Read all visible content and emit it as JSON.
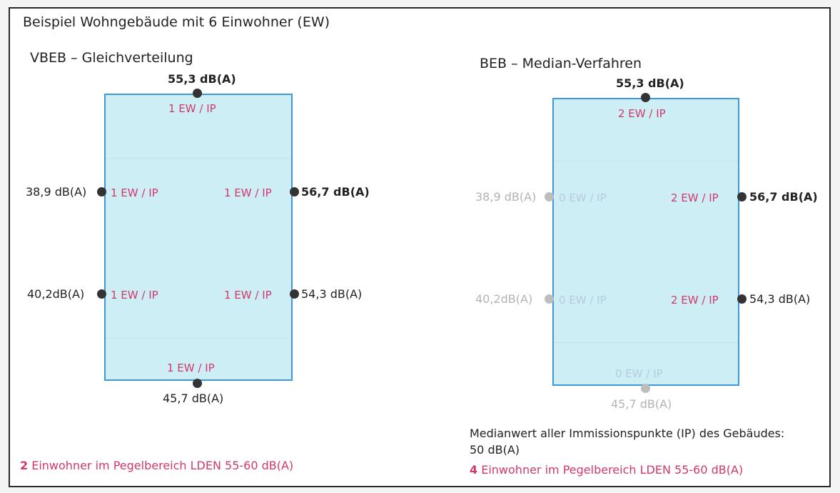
{
  "title": "Beispiel Wohngebäude mit 6 Einwohner (EW)",
  "left": {
    "heading": "VBEB – Gleichverteilung",
    "points": {
      "top": {
        "level": "55,3 dB(A)",
        "ew": "1 EW / IP"
      },
      "left_upper": {
        "level": "38,9 dB(A)",
        "ew": "1 EW / IP"
      },
      "right_upper": {
        "level": "56,7 dB(A)",
        "ew": "1 EW / IP"
      },
      "left_lower": {
        "level": "40,2dB(A)",
        "ew": "1 EW / IP"
      },
      "right_lower": {
        "level": "54,3 dB(A)",
        "ew": "1 EW / IP"
      },
      "bottom": {
        "level": "45,7 dB(A)",
        "ew": "1 EW / IP"
      }
    },
    "summary_count": "2",
    "summary_text": "Einwohner im Pegelbereich LDEN 55-60 dB(A)"
  },
  "right": {
    "heading": "BEB – Median-Verfahren",
    "points": {
      "top": {
        "level": "55,3 dB(A)",
        "ew": "2 EW / IP"
      },
      "left_upper": {
        "level": "38,9 dB(A)",
        "ew": "0 EW / IP"
      },
      "right_upper": {
        "level": "56,7 dB(A)",
        "ew": "2 EW / IP"
      },
      "left_lower": {
        "level": "40,2dB(A)",
        "ew": "0 EW / IP"
      },
      "right_lower": {
        "level": "54,3 dB(A)",
        "ew": "2 EW / IP"
      },
      "bottom": {
        "level": "45,7 dB(A)",
        "ew": "0 EW / IP"
      }
    },
    "median_line1": "Medianwert aller Immissionspunkte (IP) des Gebäudes:",
    "median_line2": "50 dB(A)",
    "summary_count": "4",
    "summary_text": "Einwohner im Pegelbereich LDEN 55-60 dB(A)"
  },
  "colors": {
    "building_fill": "#cdeef5",
    "building_border": "#3e97d8",
    "ew_label": "#d1396b",
    "dot": "#333333",
    "inactive": "#bdbdbd"
  }
}
